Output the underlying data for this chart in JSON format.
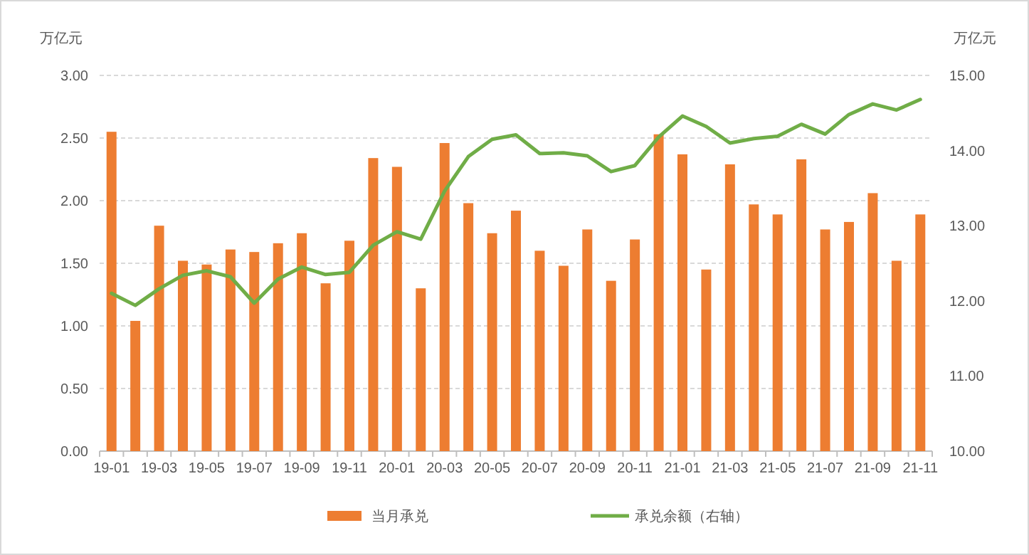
{
  "chart_data": {
    "type": "bar",
    "ylabel": "万亿元",
    "y2label": "万亿元",
    "categories": [
      "19-01",
      null,
      "19-03",
      null,
      "19-05",
      null,
      "19-07",
      null,
      "19-09",
      null,
      "19-11",
      null,
      "20-01",
      null,
      "20-03",
      null,
      "20-05",
      null,
      "20-07",
      null,
      "20-09",
      null,
      "20-11",
      null,
      "21-01",
      null,
      "21-03",
      null,
      "21-05",
      null,
      "21-07",
      null,
      "21-09",
      null,
      "21-11"
    ],
    "series": [
      {
        "name": "当月承兑",
        "color": "#ed7d31",
        "values": [
          2.55,
          1.04,
          1.8,
          1.52,
          1.49,
          1.61,
          1.59,
          1.66,
          1.74,
          1.34,
          1.68,
          2.34,
          2.27,
          1.3,
          2.46,
          1.98,
          1.74,
          1.92,
          1.6,
          1.48,
          1.77,
          1.36,
          1.69,
          2.53,
          2.37,
          1.45,
          2.29,
          1.97,
          1.89,
          2.33,
          1.77,
          1.83,
          2.06,
          1.52,
          1.89
        ]
      },
      {
        "name": "承兑余额（右轴）",
        "type": "line",
        "axis": "y2",
        "color": "#70ad47",
        "values": [
          12.1,
          11.94,
          12.16,
          12.34,
          12.4,
          12.32,
          11.97,
          12.29,
          12.45,
          12.35,
          12.38,
          12.74,
          12.92,
          12.82,
          13.46,
          13.92,
          14.15,
          14.21,
          13.96,
          13.97,
          13.93,
          13.72,
          13.8,
          14.18,
          14.46,
          14.32,
          14.1,
          14.16,
          14.19,
          14.35,
          14.22,
          14.48,
          14.62,
          14.54,
          14.68
        ]
      }
    ],
    "ylim": [
      0,
      3
    ],
    "yticks": [
      {
        "value": 0,
        "label": "0.00"
      },
      {
        "value": 0.5,
        "label": "0.50"
      },
      {
        "value": 1,
        "label": "1.00"
      },
      {
        "value": 1.5,
        "label": "1.50"
      },
      {
        "value": 2,
        "label": "2.00"
      },
      {
        "value": 2.5,
        "label": "2.50"
      },
      {
        "value": 3,
        "label": "3.00"
      }
    ],
    "y2lim": [
      10,
      15
    ],
    "y2ticks": [
      {
        "value": 10,
        "label": "10.00"
      },
      {
        "value": 11,
        "label": "11.00"
      },
      {
        "value": 12,
        "label": "12.00"
      },
      {
        "value": 13,
        "label": "13.00"
      },
      {
        "value": 14,
        "label": "14.00"
      },
      {
        "value": 15,
        "label": "15.00"
      }
    ],
    "grid": "y",
    "legend": "bottom",
    "marker": "none",
    "line_style": "solid"
  }
}
